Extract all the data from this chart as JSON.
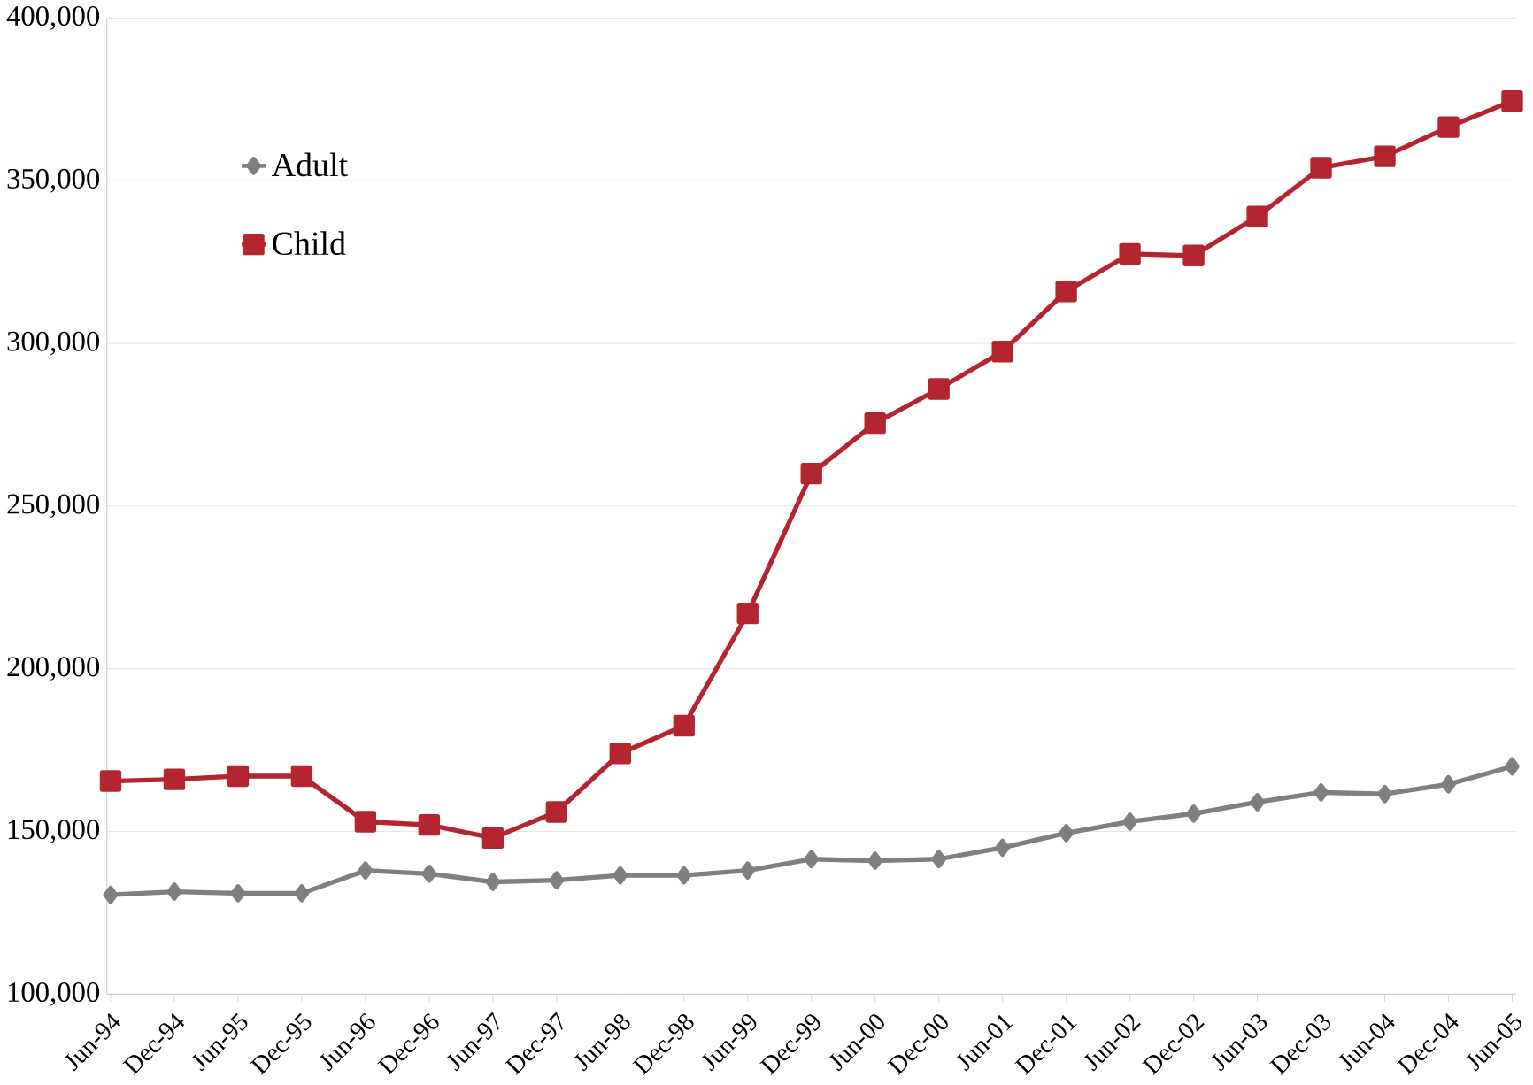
{
  "chart_data": {
    "type": "line",
    "categories": [
      "Jun-94",
      "Dec-94",
      "Jun-95",
      "Dec-95",
      "Jun-96",
      "Dec-96",
      "Jun-97",
      "Dec-97",
      "Jun-98",
      "Dec-98",
      "Jun-99",
      "Dec-99",
      "Jun-00",
      "Dec-00",
      "Jun-01",
      "Dec-01",
      "Jun-02",
      "Dec-02",
      "Jun-03",
      "Dec-03",
      "Jun-04",
      "Dec-04",
      "Jun-05"
    ],
    "series": [
      {
        "name": "Adult",
        "color": "#7f7f7f",
        "marker": "diamond",
        "values": [
          130500,
          131500,
          131000,
          131000,
          138000,
          137000,
          134500,
          135000,
          136500,
          136500,
          138000,
          141500,
          141000,
          141500,
          145000,
          149500,
          153000,
          155500,
          159000,
          162000,
          161500,
          164500,
          170000
        ]
      },
      {
        "name": "Child",
        "color": "#b3252f",
        "marker": "square",
        "values": [
          165500,
          166000,
          167000,
          167000,
          153000,
          152000,
          148000,
          156000,
          174000,
          182500,
          217000,
          260000,
          275500,
          286000,
          297500,
          316000,
          327500,
          327000,
          339000,
          354000,
          357500,
          366500,
          374500
        ]
      }
    ],
    "ylim": [
      100000,
      400000
    ],
    "yticks": [
      {
        "value": 100000,
        "label": "100,000"
      },
      {
        "value": 150000,
        "label": "150,000"
      },
      {
        "value": 200000,
        "label": "200,000"
      },
      {
        "value": 250000,
        "label": "250,000"
      },
      {
        "value": 300000,
        "label": "300,000"
      },
      {
        "value": 350000,
        "label": "350,000"
      },
      {
        "value": 400000,
        "label": "400,000"
      }
    ],
    "grid": "y",
    "legend": "top left",
    "line_style": "solid"
  }
}
